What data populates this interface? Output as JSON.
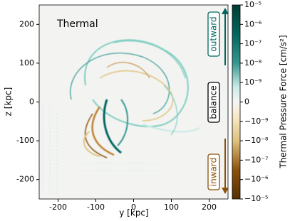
{
  "chart_data": {
    "type": "heatmap",
    "title": "Thermal",
    "xlabel": "y [kpc]",
    "ylabel": "z [kpc]",
    "xlim": [
      -250,
      250
    ],
    "xticks": [
      -200,
      -100,
      0,
      100,
      200
    ],
    "ylim": [
      -250,
      250
    ],
    "yticks": [
      -200,
      -100,
      0,
      100,
      200
    ],
    "colorbar_label": "Thermal Pressure Force [cm/s²]",
    "color_scale": "symlog",
    "clim": [
      -1e-05,
      1e-05
    ],
    "cticks": [
      {
        "value": 1e-05,
        "label": "10⁻⁵"
      },
      {
        "value": 1e-06,
        "label": "10⁻⁶"
      },
      {
        "value": 1e-07,
        "label": "10⁻⁷"
      },
      {
        "value": 1e-08,
        "label": "10⁻⁸"
      },
      {
        "value": 1e-09,
        "label": "10⁻⁹"
      },
      0,
      {
        "value": -1e-09,
        "label": "−10⁻⁹"
      },
      {
        "value": -1e-08,
        "label": "−10⁻⁸"
      },
      {
        "value": -1e-07,
        "label": "−10⁻⁷"
      },
      {
        "value": -1e-06,
        "label": "−10⁻⁶"
      },
      {
        "value": -1e-05,
        "label": "−10⁻⁵"
      }
    ],
    "annotations": [
      "outward",
      "balance",
      "inward"
    ]
  }
}
